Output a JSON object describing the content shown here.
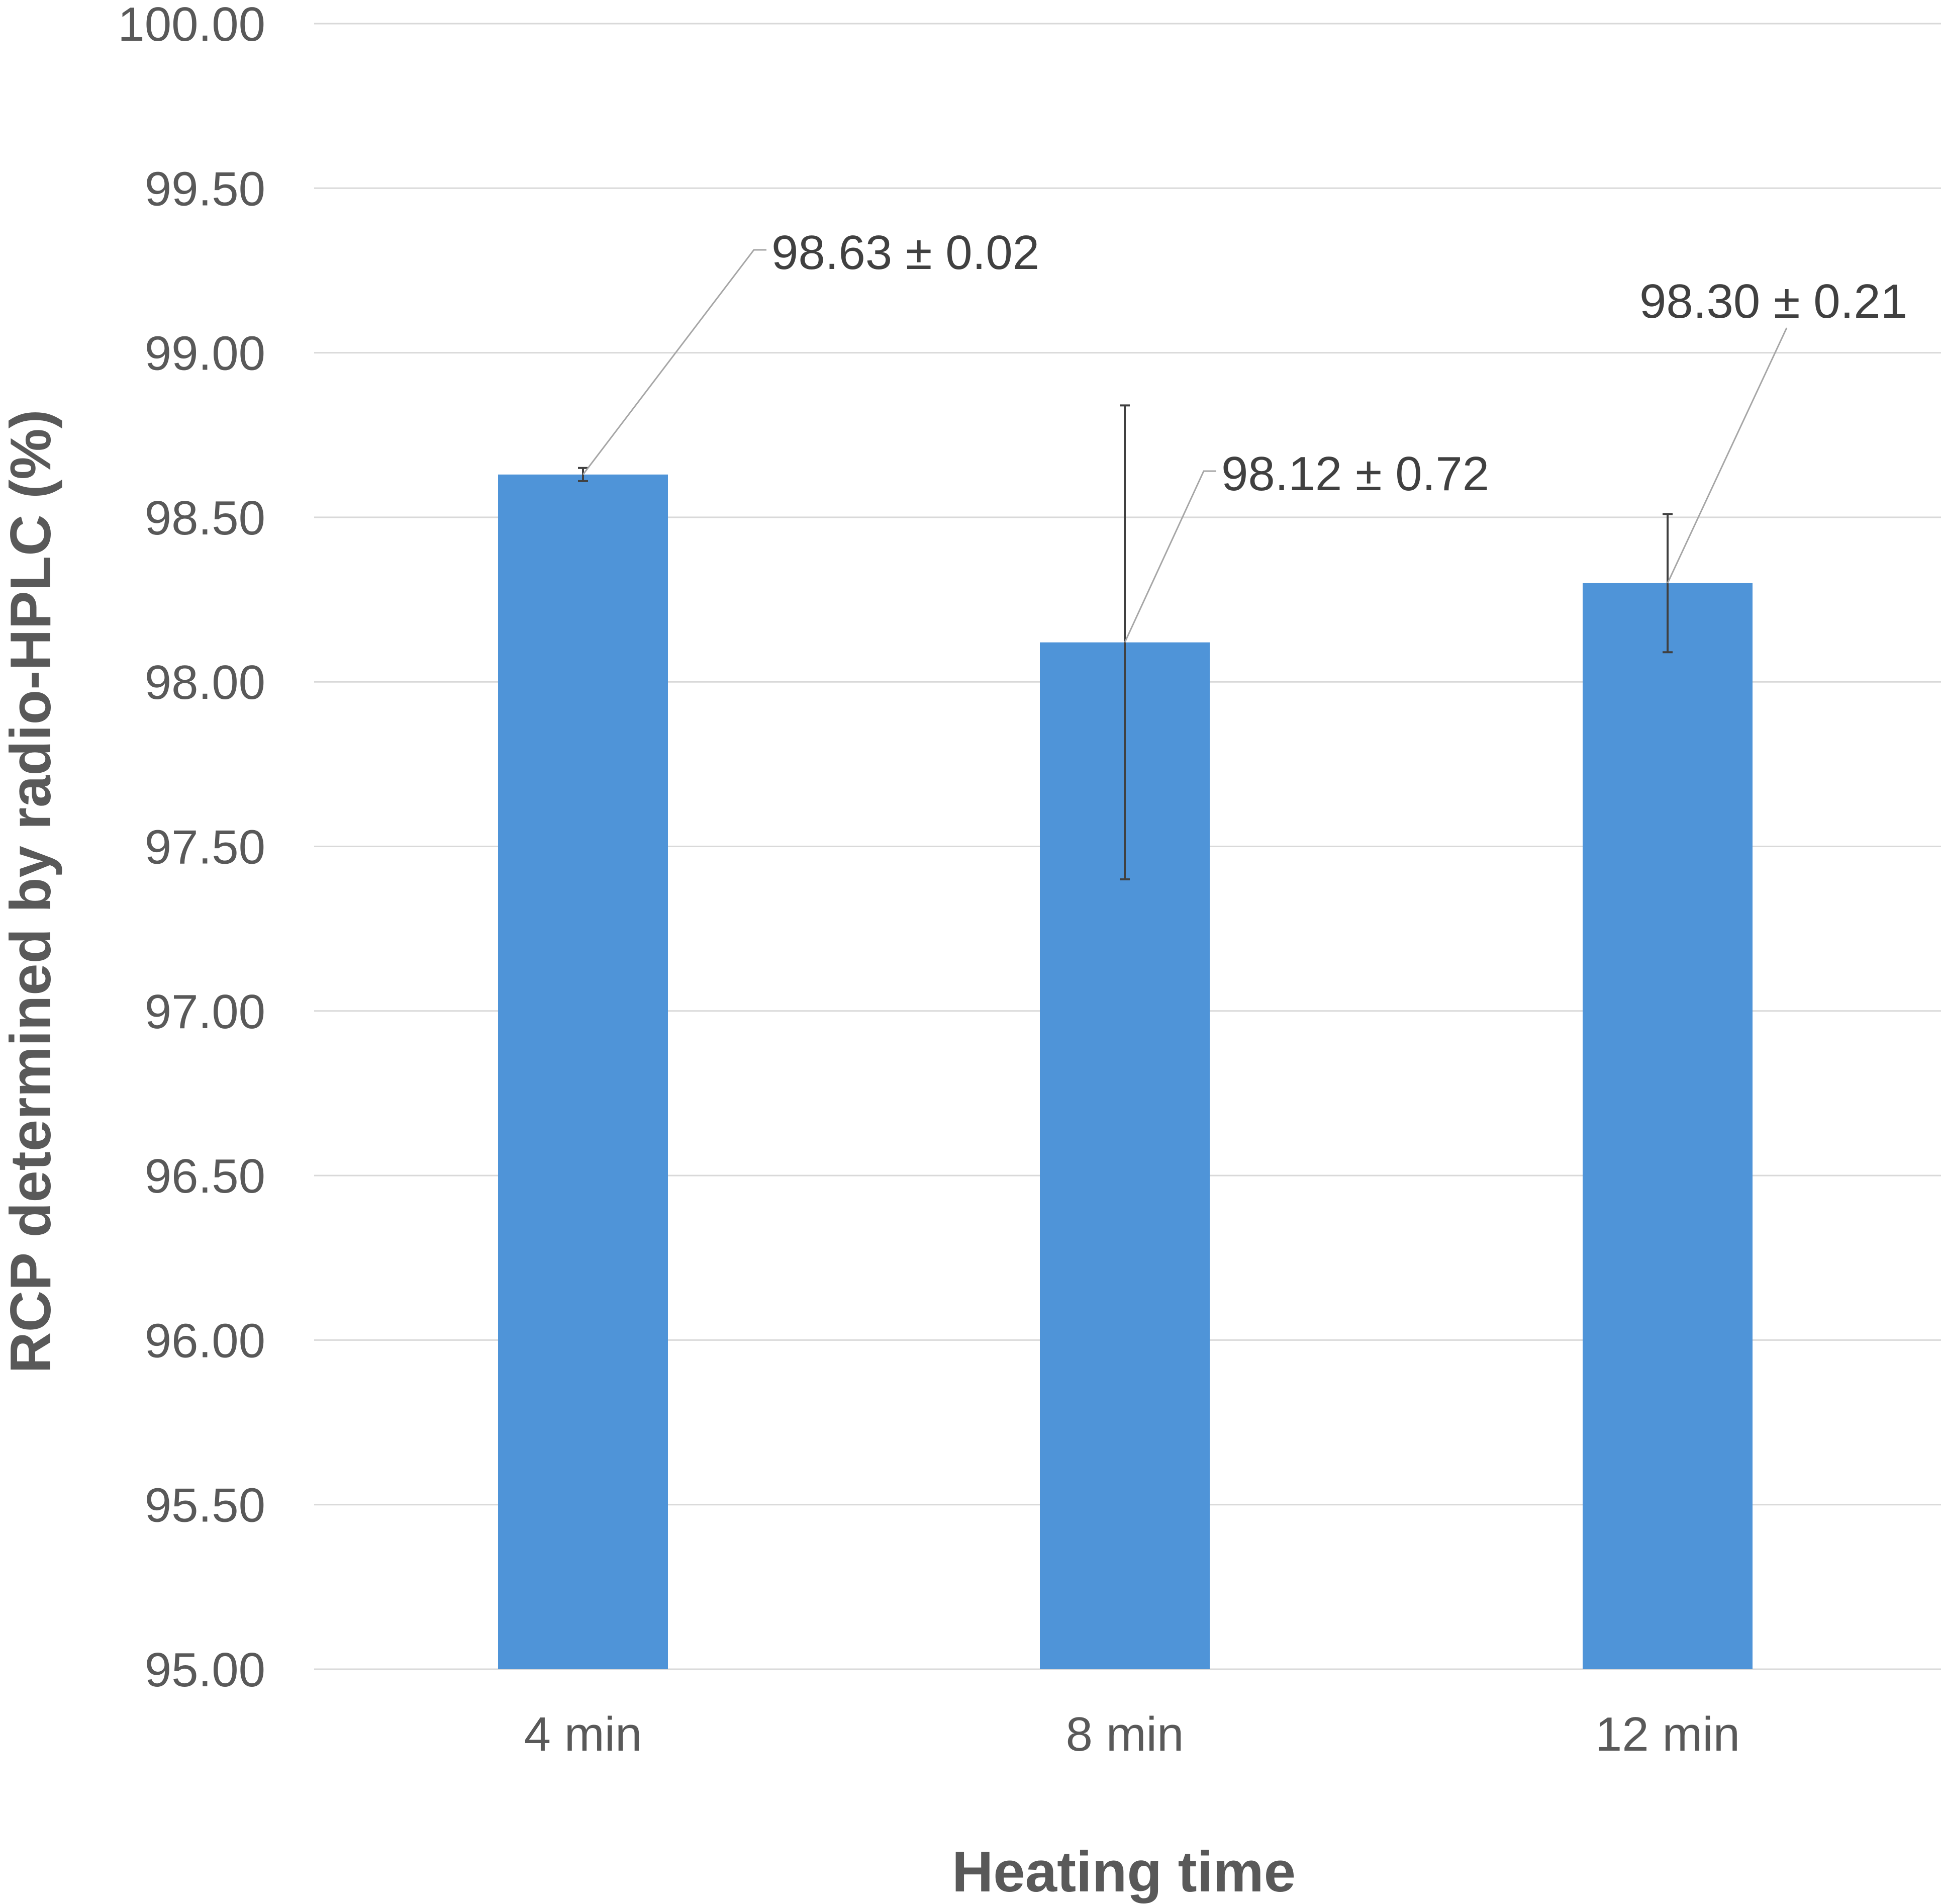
{
  "chart_data": {
    "type": "bar",
    "categories": [
      "4 min",
      "8 min",
      "12 min"
    ],
    "series": [
      {
        "values": [
          98.63,
          98.12,
          98.3
        ],
        "errors": [
          0.02,
          0.72,
          0.21
        ],
        "color": "#4F94D8"
      }
    ],
    "data_labels": [
      "98.63 ± 0.02",
      "98.12 ± 0.72",
      "98.30 ± 0.21"
    ],
    "xlabel": "Heating time",
    "ylabel": "RCP determined by radio-HPLC (%)",
    "ylim": [
      95.0,
      100.0
    ],
    "yticks": [
      "95.00",
      "95.50",
      "96.00",
      "96.50",
      "97.00",
      "97.50",
      "98.00",
      "98.50",
      "99.00",
      "99.50",
      "100.00"
    ],
    "grid": true,
    "legend": "none"
  },
  "colors": {
    "bar": "#4F94D8",
    "grid": "#D9D9D9",
    "text": "#595959",
    "error_bar": "#404040",
    "leader_line": "#A6A6A6"
  }
}
